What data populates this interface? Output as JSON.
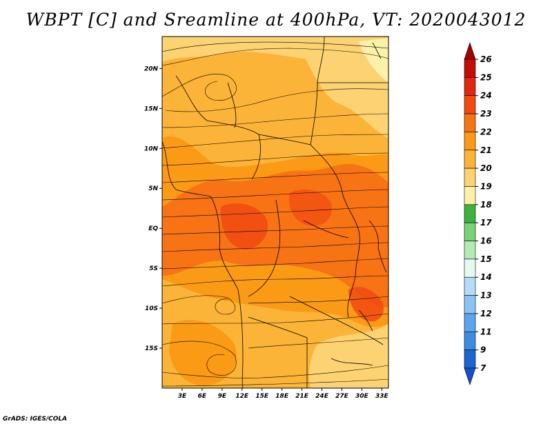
{
  "title": "WBPT [C] and Sreamline at 400hPa, VT: 2020043012",
  "credit": "GrADS: IGES/COLA",
  "map": {
    "lat_labels": [
      "20N",
      "15N",
      "10N",
      "5N",
      "EQ",
      "5S",
      "10S",
      "15S"
    ],
    "lat_values": [
      20,
      15,
      10,
      5,
      0,
      -5,
      -10,
      -15
    ],
    "lon_labels": [
      "3E",
      "6E",
      "9E",
      "12E",
      "15E",
      "18E",
      "21E",
      "24E",
      "27E",
      "30E",
      "33E"
    ],
    "lon_values": [
      3,
      6,
      9,
      12,
      15,
      18,
      21,
      24,
      27,
      30,
      33
    ],
    "lat_range": [
      -20,
      24
    ],
    "lon_range": [
      0,
      34
    ]
  },
  "colorbar": {
    "labels": [
      "26",
      "25",
      "24",
      "23",
      "22",
      "21",
      "20",
      "19",
      "18",
      "17",
      "16",
      "15",
      "14",
      "13",
      "12",
      "11",
      "9",
      "7"
    ],
    "colors": [
      "#a50000",
      "#c30d05",
      "#e1280f",
      "#f04a10",
      "#f77314",
      "#fb9a14",
      "#fbb437",
      "#fdd272",
      "#fdf0a8",
      "#3cb43c",
      "#78d278",
      "#b4ebb4",
      "#e6f9f0",
      "#b4dcfa",
      "#8cc3f5",
      "#5aa5eb",
      "#3c8ce1",
      "#1e64d2",
      "#1450c8"
    ]
  }
}
